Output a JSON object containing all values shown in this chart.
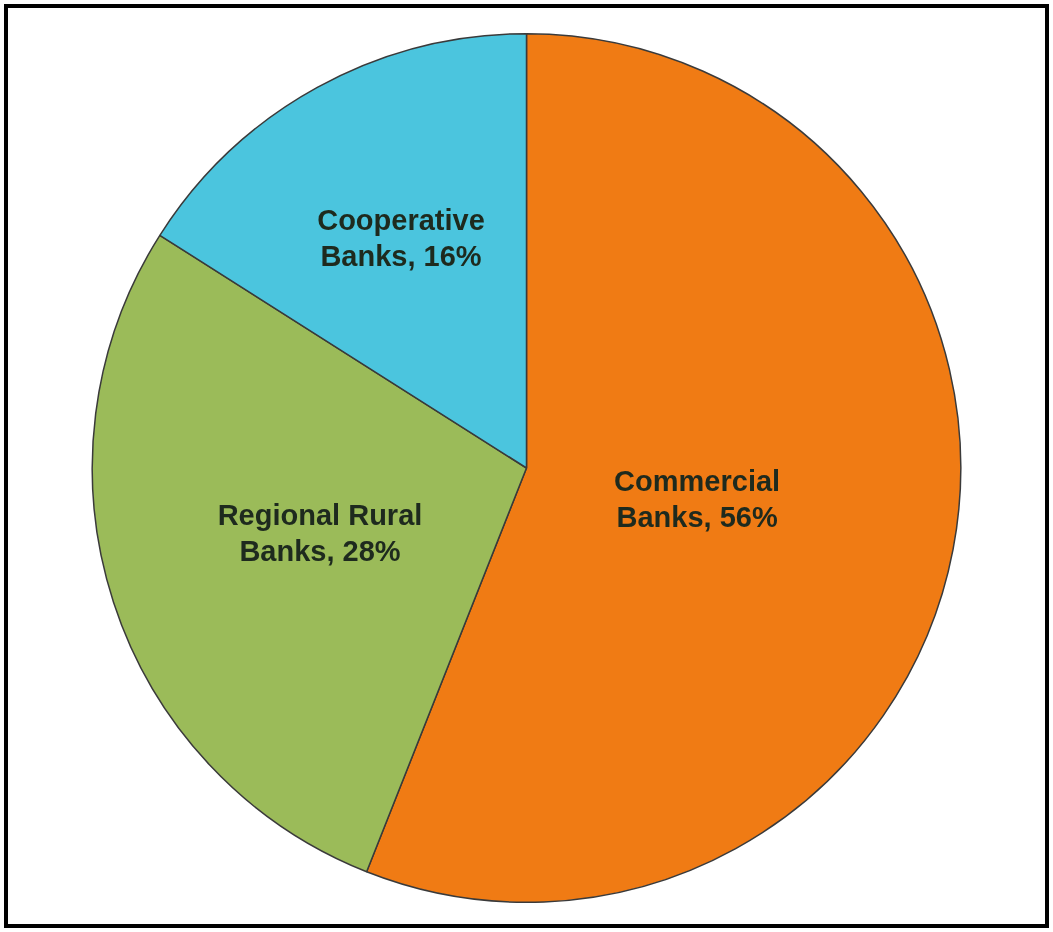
{
  "chart_data": {
    "type": "pie",
    "categories": [
      "Commercial Banks",
      "Regional Rural Banks",
      "Cooperative Banks"
    ],
    "values": [
      56,
      28,
      16
    ],
    "colors": [
      "#f07b14",
      "#9bbb59",
      "#4bc5de"
    ],
    "value_labels": [
      "56%",
      "28%",
      "16%"
    ],
    "legend": false
  }
}
